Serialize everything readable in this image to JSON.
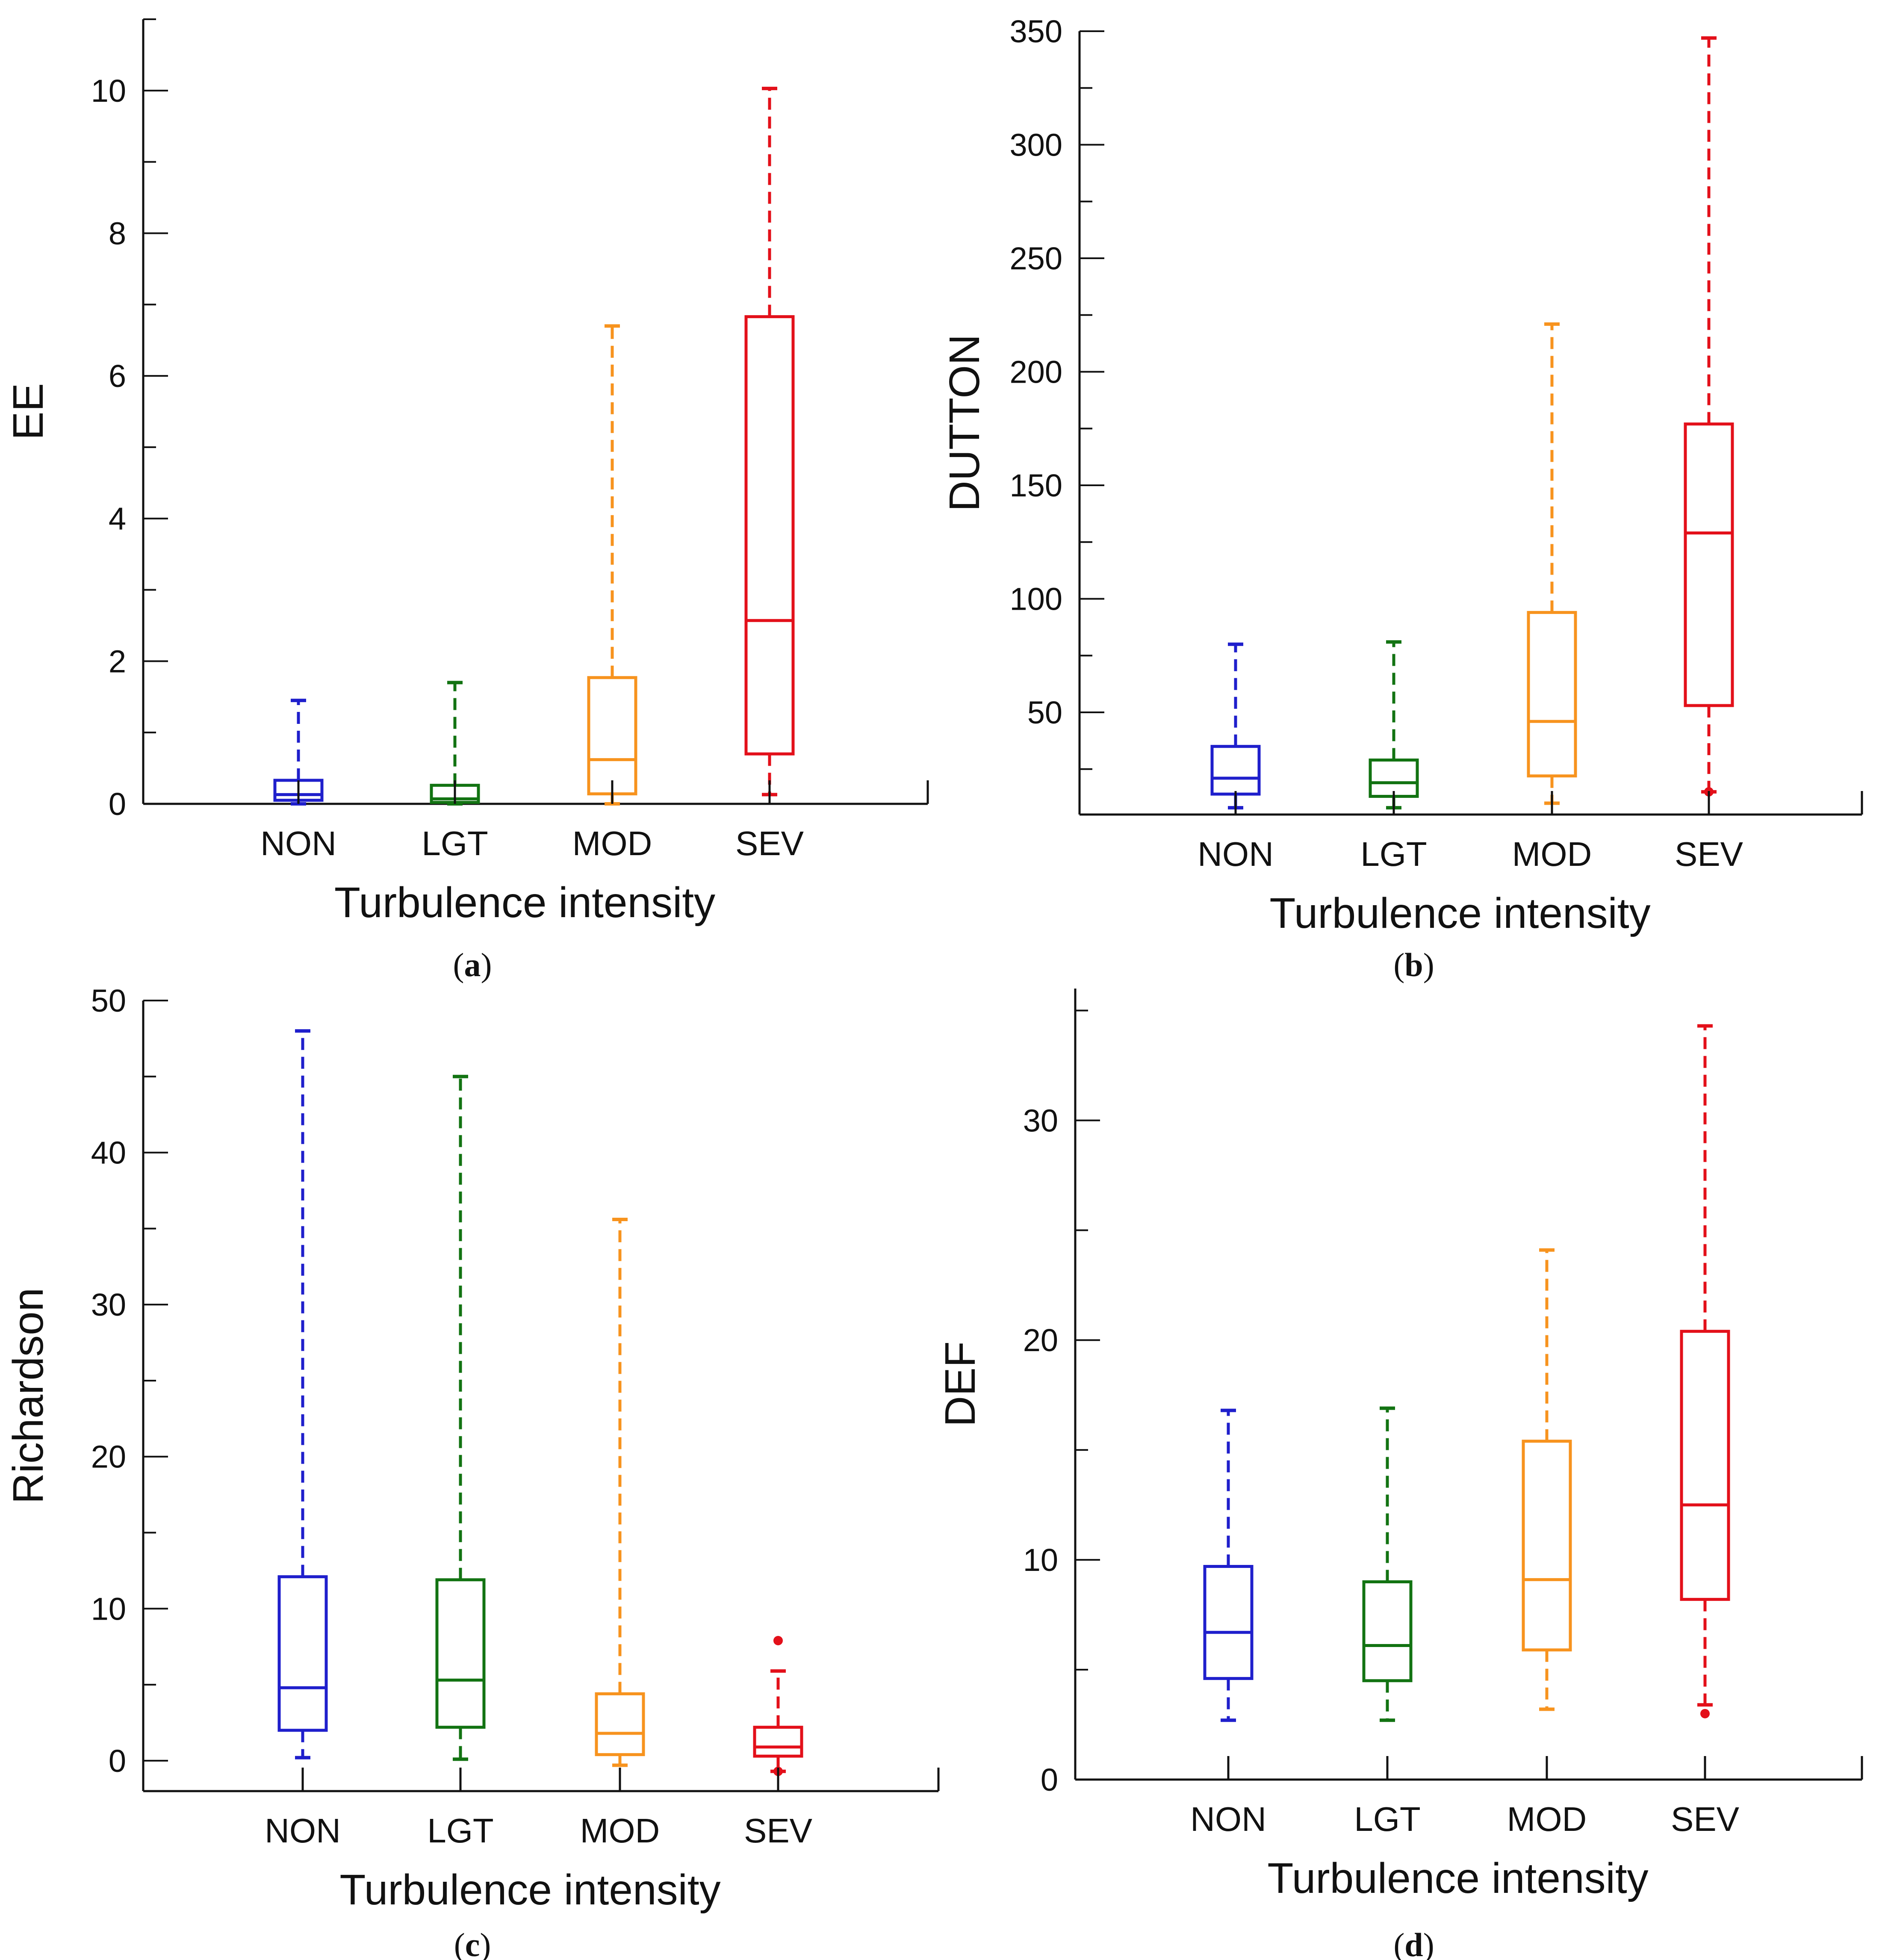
{
  "colors": {
    "NON": "#1f1fcc",
    "LGT": "#127312",
    "MOD": "#f7931e",
    "SEV": "#e3101a",
    "axis": "#111111"
  },
  "chart_data": [
    {
      "type": "box",
      "panel": "a",
      "caption_letter": "a",
      "xlabel": "Turbulence intensity",
      "ylabel": "EE",
      "ylim": [
        0,
        11
      ],
      "yticks": [
        0,
        2,
        4,
        6,
        8,
        10
      ],
      "categories": [
        "NON",
        "LGT",
        "MOD",
        "SEV"
      ],
      "boxes": [
        {
          "category": "NON",
          "whisker_low": 0.0,
          "q1": 0.05,
          "median": 0.13,
          "q3": 0.33,
          "whisker_high": 1.45,
          "outliers": []
        },
        {
          "category": "LGT",
          "whisker_low": 0.0,
          "q1": 0.02,
          "median": 0.07,
          "q3": 0.26,
          "whisker_high": 1.7,
          "outliers": []
        },
        {
          "category": "MOD",
          "whisker_low": 0.0,
          "q1": 0.14,
          "median": 0.62,
          "q3": 1.77,
          "whisker_high": 6.7,
          "outliers": []
        },
        {
          "category": "SEV",
          "whisker_low": 0.13,
          "q1": 0.7,
          "median": 2.57,
          "q3": 6.83,
          "whisker_high": 10.03,
          "outliers": []
        }
      ]
    },
    {
      "type": "box",
      "panel": "b",
      "caption_letter": "b",
      "xlabel": "Turbulence intensity",
      "ylabel": "DUTTON",
      "ylim": [
        5,
        350
      ],
      "yticks": [
        50,
        100,
        150,
        200,
        250,
        300,
        350
      ],
      "categories": [
        "NON",
        "LGT",
        "MOD",
        "SEV"
      ],
      "boxes": [
        {
          "category": "NON",
          "whisker_low": 8,
          "q1": 14,
          "median": 21,
          "q3": 35,
          "whisker_high": 80,
          "outliers": []
        },
        {
          "category": "LGT",
          "whisker_low": 8,
          "q1": 13,
          "median": 19,
          "q3": 29,
          "whisker_high": 81,
          "outliers": []
        },
        {
          "category": "MOD",
          "whisker_low": 10,
          "q1": 22,
          "median": 46,
          "q3": 94,
          "whisker_high": 221,
          "outliers": []
        },
        {
          "category": "SEV",
          "whisker_low": 15,
          "q1": 53,
          "median": 129,
          "q3": 177,
          "whisker_high": 347,
          "outliers": [
            15
          ]
        }
      ]
    },
    {
      "type": "box",
      "panel": "c",
      "caption_letter": "c",
      "xlabel": "Turbulence intensity",
      "ylabel": "Richardson",
      "ylim": [
        -2,
        50
      ],
      "yticks": [
        0,
        10,
        20,
        30,
        40,
        50
      ],
      "categories": [
        "NON",
        "LGT",
        "MOD",
        "SEV"
      ],
      "boxes": [
        {
          "category": "NON",
          "whisker_low": 0.2,
          "q1": 2.0,
          "median": 4.8,
          "q3": 12.1,
          "whisker_high": 48.0,
          "outliers": []
        },
        {
          "category": "LGT",
          "whisker_low": 0.1,
          "q1": 2.2,
          "median": 5.3,
          "q3": 11.9,
          "whisker_high": 45.0,
          "outliers": []
        },
        {
          "category": "MOD",
          "whisker_low": -0.3,
          "q1": 0.4,
          "median": 1.8,
          "q3": 4.4,
          "whisker_high": 35.6,
          "outliers": []
        },
        {
          "category": "SEV",
          "whisker_low": -0.7,
          "q1": 0.3,
          "median": 0.9,
          "q3": 2.2,
          "whisker_high": 5.9,
          "outliers": [
            -0.7,
            7.9
          ]
        }
      ]
    },
    {
      "type": "box",
      "panel": "d",
      "caption_letter": "d",
      "xlabel": "Turbulence intensity",
      "ylabel": "DEF",
      "ylim": [
        0,
        36
      ],
      "yticks": [
        0,
        10,
        20,
        30
      ],
      "categories": [
        "NON",
        "LGT",
        "MOD",
        "SEV"
      ],
      "boxes": [
        {
          "category": "NON",
          "whisker_low": 2.7,
          "q1": 4.6,
          "median": 6.7,
          "q3": 9.7,
          "whisker_high": 16.8,
          "outliers": []
        },
        {
          "category": "LGT",
          "whisker_low": 2.7,
          "q1": 4.5,
          "median": 6.1,
          "q3": 9.0,
          "whisker_high": 16.9,
          "outliers": []
        },
        {
          "category": "MOD",
          "whisker_low": 3.2,
          "q1": 5.9,
          "median": 9.1,
          "q3": 15.4,
          "whisker_high": 24.1,
          "outliers": []
        },
        {
          "category": "SEV",
          "whisker_low": 3.4,
          "q1": 8.2,
          "median": 12.5,
          "q3": 20.4,
          "whisker_high": 34.3,
          "outliers": [
            3.0
          ]
        }
      ]
    }
  ]
}
